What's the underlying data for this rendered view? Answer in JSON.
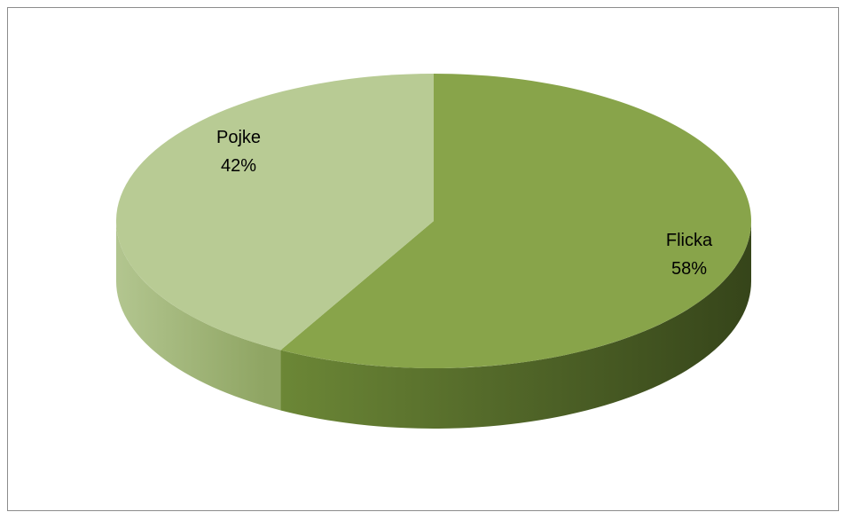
{
  "chart_data": {
    "type": "pie",
    "style": "3d",
    "categories": [
      "Flicka",
      "Pojke"
    ],
    "values": [
      58,
      42
    ],
    "value_labels": [
      "58%",
      "42%"
    ],
    "colors": {
      "Flicka": "#88A44A",
      "Pojke": "#B8CB94"
    },
    "legend": "none"
  }
}
